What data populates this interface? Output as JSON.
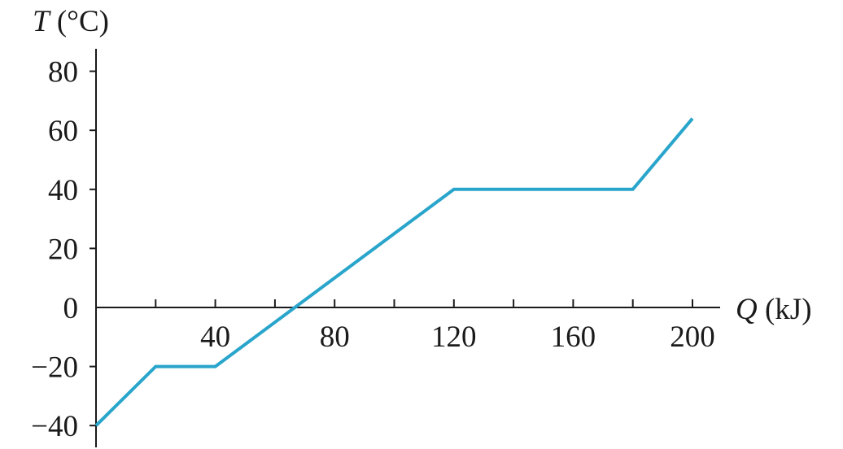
{
  "chart_data": {
    "type": "line",
    "x_axis": {
      "label_var": "Q",
      "label_unit": "(kJ)",
      "range": [
        0,
        210
      ],
      "ticks": [
        20,
        40,
        60,
        80,
        100,
        120,
        140,
        160,
        180,
        200
      ],
      "labeled_ticks": [
        40,
        80,
        120,
        160,
        200
      ],
      "tick_labels": [
        "40",
        "80",
        "120",
        "160",
        "200"
      ]
    },
    "y_axis": {
      "label_var": "T",
      "label_unit": "(°C)",
      "range": [
        -42,
        88
      ],
      "ticks": [
        -40,
        -20,
        0,
        20,
        40,
        60,
        80
      ],
      "tick_labels": [
        "−40",
        "−20",
        "0",
        "20",
        "40",
        "60",
        "80"
      ]
    },
    "series": [
      {
        "color": "#29a5cc",
        "points": [
          [
            0,
            -40
          ],
          [
            20,
            -20
          ],
          [
            40,
            -20
          ],
          [
            120,
            40
          ],
          [
            180,
            40
          ],
          [
            200,
            64
          ]
        ]
      }
    ],
    "grid": false,
    "legend": "none"
  }
}
